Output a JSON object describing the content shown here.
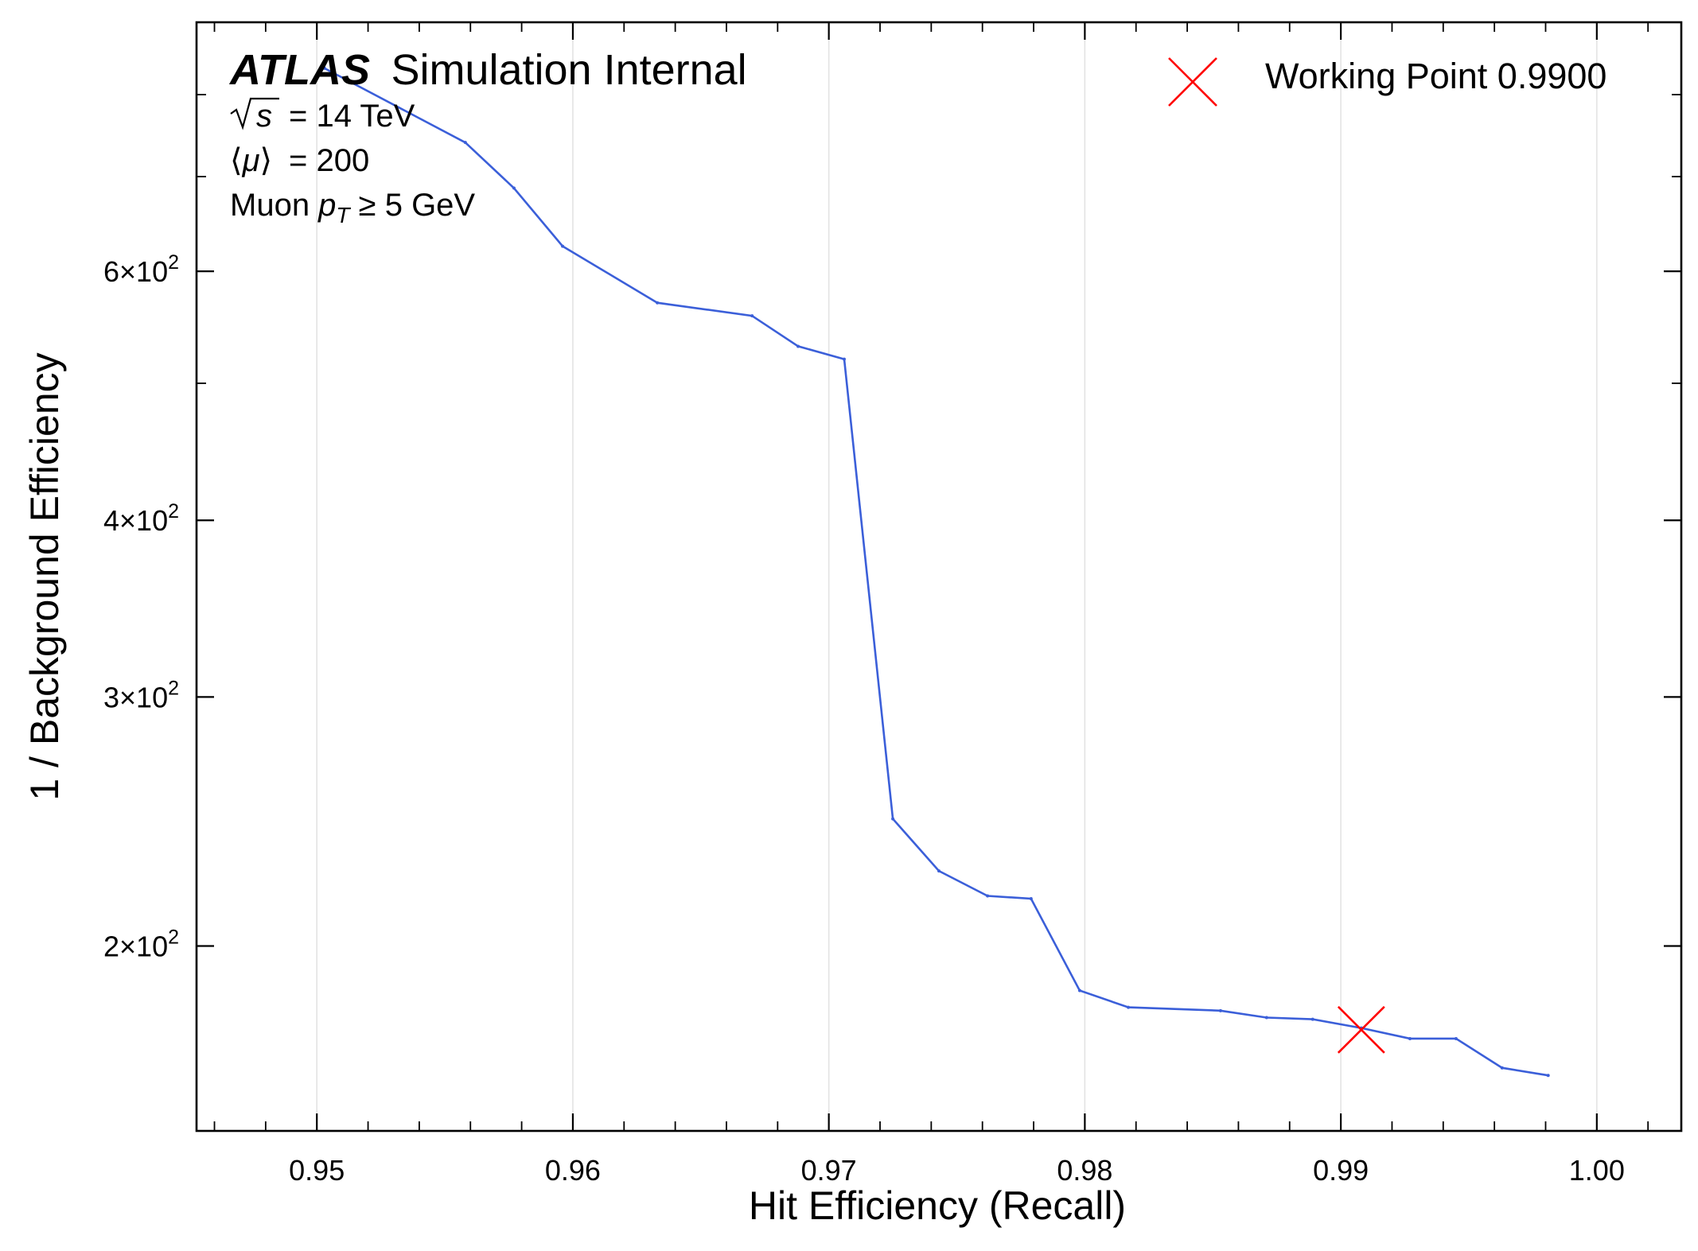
{
  "colors": {
    "series": "#3b5fd9",
    "working_point": "#ff0000",
    "grid": "#e3e3e3",
    "axes": "#000000"
  },
  "annotation": {
    "atlas_tag": "ATLAS",
    "atlas_rest": "Simulation Internal",
    "line1_value": "= 14 TeV",
    "line2_value": "= 200",
    "line3_pre": "Muon ",
    "line3_post": " ≥ 5 GeV"
  },
  "legend": {
    "working_point_label": "Working Point 0.9900"
  },
  "chart_data": {
    "type": "line",
    "xlabel": "Hit Efficiency (Recall)",
    "ylabel": "1 / Background Efficiency",
    "xlim": [
      0.9453,
      1.0033
    ],
    "ylim": [
      148,
      900
    ],
    "yscale": "log",
    "grid": "vertical",
    "legend_position": "top-right",
    "x_ticks": [
      0.95,
      0.96,
      0.97,
      0.98,
      0.99,
      1.0
    ],
    "x_tick_labels": [
      "0.95",
      "0.96",
      "0.97",
      "0.98",
      "0.99",
      "1.00"
    ],
    "y_ticks": [
      200,
      300,
      400,
      600
    ],
    "y_tick_mantissas": [
      "2",
      "3",
      "4",
      "6"
    ],
    "series": [
      {
        "x": [
          0.9503,
          0.9558,
          0.9577,
          0.9596,
          0.9633,
          0.967,
          0.9688,
          0.9706,
          0.9725,
          0.9743,
          0.9762,
          0.9779,
          0.9798,
          0.9817,
          0.9853,
          0.9871,
          0.9889,
          0.9908,
          0.9927,
          0.9945,
          0.9963,
          0.9981
        ],
        "y": [
          835,
          740,
          687,
          625,
          570,
          558,
          531,
          520,
          246,
          226,
          217,
          216,
          186,
          181,
          180,
          178,
          177.5,
          175,
          172,
          172,
          164,
          162
        ]
      }
    ],
    "working_point": {
      "name": "Working Point 0.9900",
      "x": 0.9908,
      "y": 174.5
    }
  }
}
